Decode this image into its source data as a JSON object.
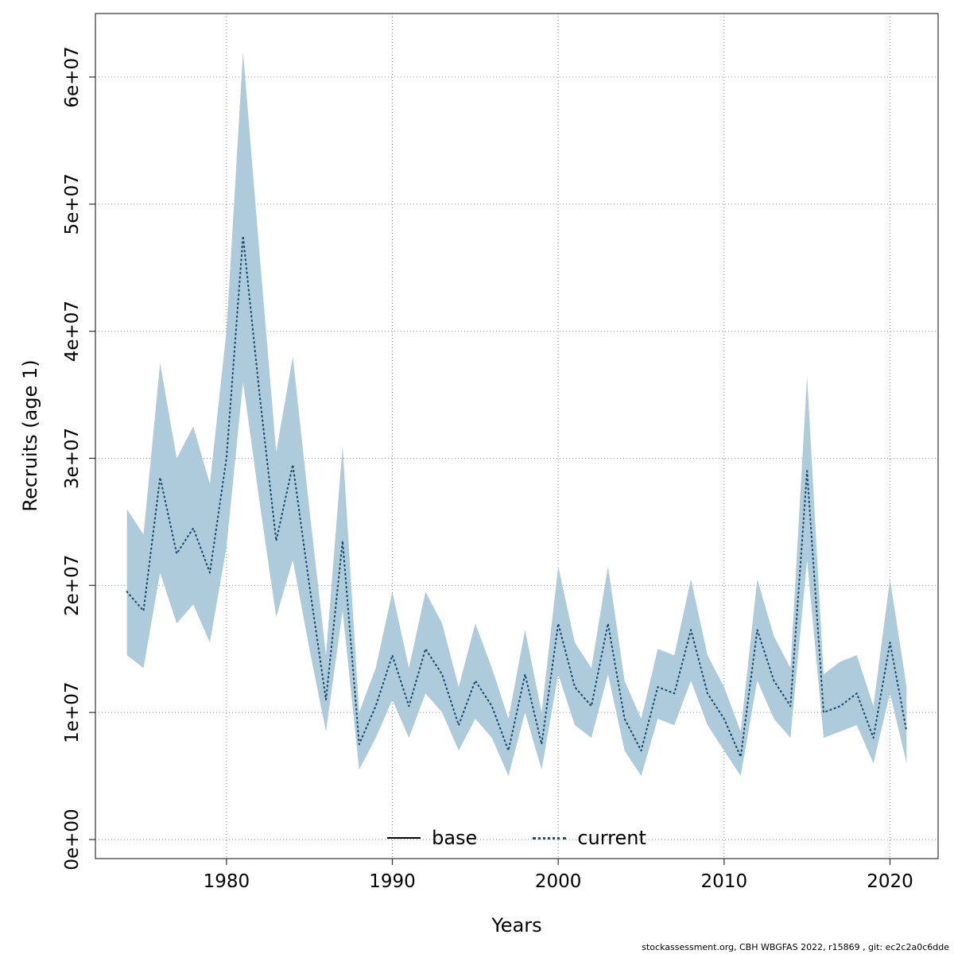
{
  "legend": {
    "base_label": "base",
    "current_label": "current"
  },
  "footer": {
    "text": "stockassessment.org, CBH WBGFAS 2022, r15869 , git: ec2c2a0c6dde"
  },
  "colors": {
    "band": "#aecbdb",
    "current_line": "#1b4f72",
    "base_line": "#000000",
    "grid": "#8a8a8a",
    "frame": "#333333"
  },
  "chart_data": {
    "type": "line",
    "title": "",
    "xlabel": "Years",
    "ylabel": "Recruits (age 1)",
    "xlim": [
      1972.1,
      2022.9
    ],
    "ylim": [
      -1500000,
      65000000
    ],
    "x_ticks": [
      1980,
      1990,
      2000,
      2010,
      2020
    ],
    "y_ticks": [
      0,
      10000000,
      20000000,
      30000000,
      40000000,
      50000000,
      60000000
    ],
    "y_tick_labels": [
      "0e+00",
      "1e+07",
      "2e+07",
      "3e+07",
      "4e+07",
      "5e+07",
      "6e+07"
    ],
    "grid": true,
    "legend_position": "bottom-center-inside",
    "legend_entries": [
      {
        "label": "base",
        "style": "solid",
        "color": "#000000"
      },
      {
        "label": "current",
        "style": "dotted",
        "color": "#1b4f72"
      }
    ],
    "values_scale": 1000000,
    "years": [
      1974,
      1975,
      1976,
      1977,
      1978,
      1979,
      1980,
      1981,
      1982,
      1983,
      1984,
      1985,
      1986,
      1987,
      1988,
      1989,
      1990,
      1991,
      1992,
      1993,
      1994,
      1995,
      1996,
      1997,
      1998,
      1999,
      2000,
      2001,
      2002,
      2003,
      2004,
      2005,
      2006,
      2007,
      2008,
      2009,
      2010,
      2011,
      2012,
      2013,
      2014,
      2015,
      2016,
      2017,
      2018,
      2019,
      2020,
      2021
    ],
    "series": [
      {
        "name": "current",
        "style": "dotted",
        "values_millions": [
          19.5,
          18,
          28.5,
          22.5,
          24.5,
          21,
          30,
          47.5,
          35,
          23.5,
          29.5,
          20,
          11,
          23.5,
          7.5,
          10.5,
          14.5,
          10.5,
          15,
          13,
          9,
          12.5,
          10.5,
          7,
          13,
          7.5,
          17,
          12,
          10.5,
          17,
          9.5,
          7,
          12,
          11.5,
          16.5,
          11.5,
          9.5,
          6.5,
          16.5,
          12.5,
          10.5,
          29,
          10,
          10.5,
          11.5,
          8,
          15.5,
          8.5
        ]
      }
    ],
    "ci_lower_millions": [
      14.5,
      13.5,
      21,
      17,
      18.5,
      15.5,
      23,
      36,
      26.5,
      17.5,
      22,
      15,
      8.5,
      18,
      5.5,
      8,
      11,
      8,
      11.5,
      10,
      7,
      9.5,
      8,
      5,
      10,
      5.5,
      13,
      9,
      8,
      13,
      7,
      5,
      9.5,
      9,
      12.5,
      9,
      7,
      5,
      12.5,
      9.5,
      8,
      22,
      8,
      8.5,
      9,
      6,
      11.5,
      6
    ],
    "ci_upper_millions": [
      26,
      24,
      37.5,
      30,
      32.5,
      28,
      40,
      62,
      46,
      30.5,
      38,
      26,
      14.5,
      31,
      10,
      13.5,
      19.5,
      13.5,
      19.5,
      17,
      12,
      17,
      13.5,
      9.5,
      16.5,
      10,
      21.5,
      15.5,
      13.5,
      21.5,
      12.5,
      9.5,
      15,
      14.5,
      20.5,
      14.5,
      12,
      8.5,
      20.5,
      16,
      13.5,
      36.5,
      13,
      14,
      14.5,
      10.5,
      20.5,
      12
    ]
  }
}
